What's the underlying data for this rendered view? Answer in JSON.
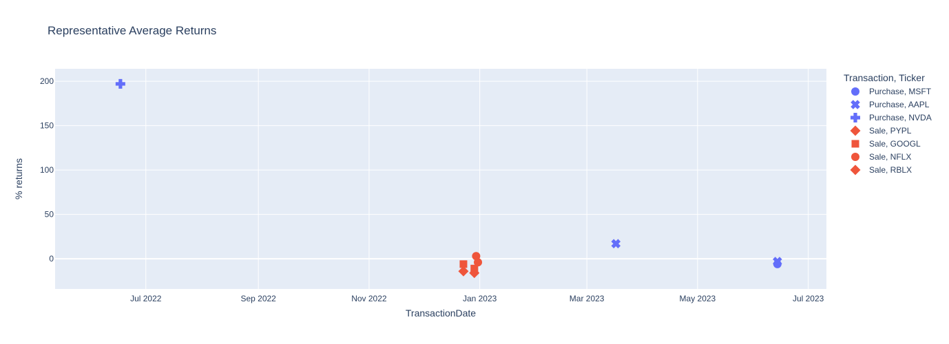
{
  "chart_data": {
    "type": "scatter",
    "title": "Representative Average Returns",
    "xlabel": "TransactionDate",
    "ylabel": "% returns",
    "x_axis_type": "date",
    "xlim": [
      "2022-05-12",
      "2023-07-11"
    ],
    "ylim": [
      -34,
      214
    ],
    "x_ticks": [
      {
        "date": "2022-07-01",
        "label": "Jul 2022"
      },
      {
        "date": "2022-09-01",
        "label": "Sep 2022"
      },
      {
        "date": "2022-11-01",
        "label": "Nov 2022"
      },
      {
        "date": "2023-01-01",
        "label": "Jan 2023"
      },
      {
        "date": "2023-03-01",
        "label": "Mar 2023"
      },
      {
        "date": "2023-05-01",
        "label": "May 2023"
      },
      {
        "date": "2023-07-01",
        "label": "Jul 2023"
      }
    ],
    "y_ticks": [
      0,
      50,
      100,
      150,
      200
    ],
    "grid": true,
    "legend_title": "Transaction, Ticker",
    "legend_position": "right",
    "colors": {
      "purchase": "#636efa",
      "sale": "#ef553b",
      "plot_bg": "#e5ecf6",
      "grid": "#ffffff"
    },
    "series": [
      {
        "name": "Purchase, MSFT",
        "color": "#636efa",
        "symbol": "circle",
        "points": [
          {
            "x": "2023-06-14",
            "y": -6
          }
        ]
      },
      {
        "name": "Purchase, AAPL",
        "color": "#636efa",
        "symbol": "x",
        "points": [
          {
            "x": "2023-03-17",
            "y": 17
          },
          {
            "x": "2023-06-14",
            "y": -3
          }
        ]
      },
      {
        "name": "Purchase, NVDA",
        "color": "#636efa",
        "symbol": "cross",
        "points": [
          {
            "x": "2022-06-17",
            "y": 197
          }
        ]
      },
      {
        "name": "Sale, PYPL",
        "color": "#ef553b",
        "symbol": "diamond",
        "points": [
          {
            "x": "2022-12-23",
            "y": -14
          }
        ]
      },
      {
        "name": "Sale, GOOGL",
        "color": "#ef553b",
        "symbol": "square",
        "points": [
          {
            "x": "2022-12-23",
            "y": -6
          },
          {
            "x": "2022-12-29",
            "y": -11
          }
        ]
      },
      {
        "name": "Sale, NFLX",
        "color": "#ef553b",
        "symbol": "circle",
        "points": [
          {
            "x": "2022-12-30",
            "y": 3
          },
          {
            "x": "2022-12-31",
            "y": -4
          }
        ]
      },
      {
        "name": "Sale, RBLX",
        "color": "#ef553b",
        "symbol": "diamond",
        "points": [
          {
            "x": "2022-12-29",
            "y": -16
          }
        ]
      }
    ]
  }
}
